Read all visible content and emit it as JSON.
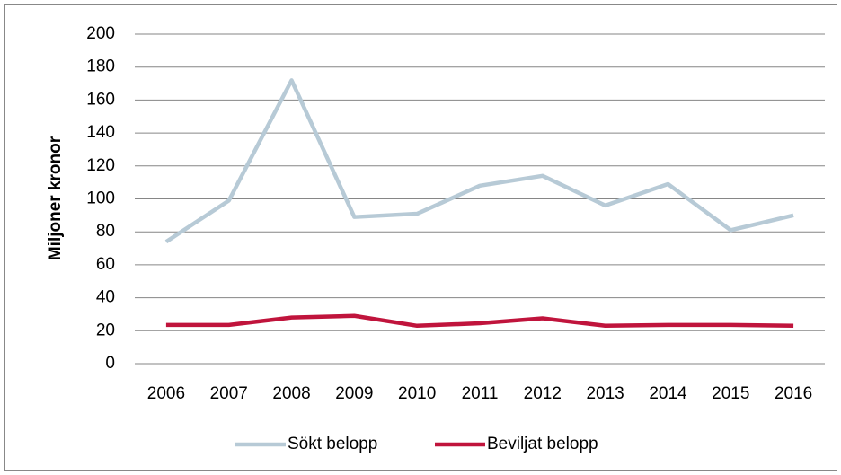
{
  "chart_data": {
    "type": "line",
    "ylabel": "Miljoner kronor",
    "categories": [
      "2006",
      "2007",
      "2008",
      "2009",
      "2010",
      "2011",
      "2012",
      "2013",
      "2014",
      "2015",
      "2016"
    ],
    "series": [
      {
        "name": "Sökt belopp",
        "color": "#b7cad6",
        "values": [
          74,
          99,
          172,
          89,
          91,
          108,
          114,
          96,
          109,
          81,
          90
        ]
      },
      {
        "name": "Beviljat belopp",
        "color": "#c0143c",
        "values": [
          23.5,
          23.5,
          28,
          29,
          23,
          24.5,
          27.5,
          23,
          23.5,
          23.5,
          23
        ]
      }
    ],
    "ylim": [
      0,
      200
    ],
    "yticks": [
      0,
      20,
      40,
      60,
      80,
      100,
      120,
      140,
      160,
      180,
      200
    ],
    "grid": true,
    "legend": "bottom"
  }
}
